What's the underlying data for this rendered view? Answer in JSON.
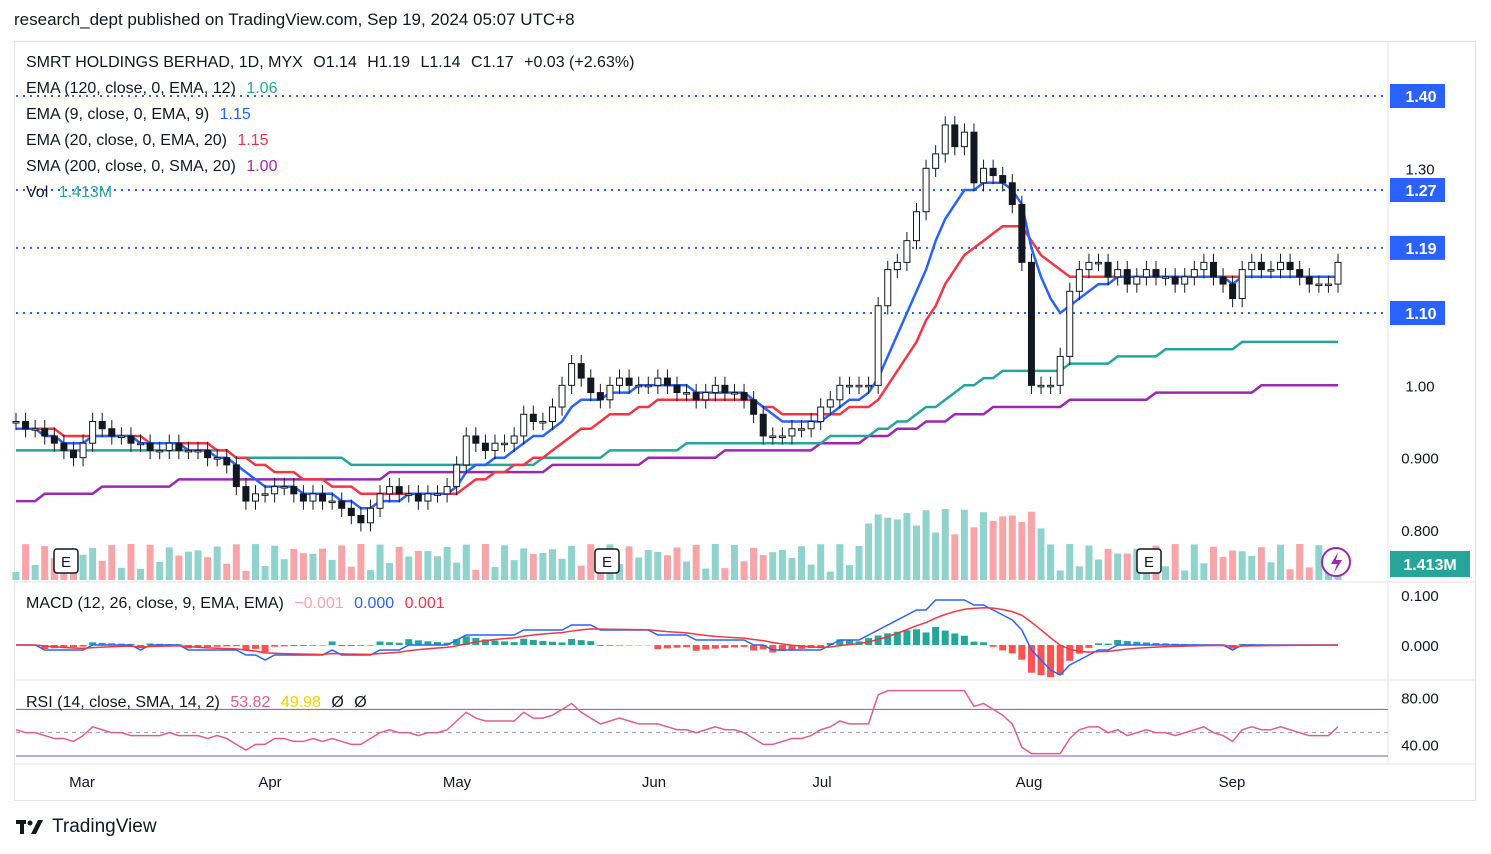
{
  "header": {
    "publish_line": "research_dept published on TradingView.com, Sep 19, 2024 05:07 UTC+8"
  },
  "footer": {
    "brand": "TradingView",
    "logo_icon": "tradingview-logo-icon"
  },
  "symbol_line": {
    "name": "SMRT HOLDINGS BERHAD, 1D, MYX",
    "open": "O1.14",
    "high": "H1.19",
    "low": "L1.14",
    "close": "C1.17",
    "change": "+0.03 (+2.63%)"
  },
  "indicators": [
    {
      "label": "EMA (120, close, 0, EMA, 12)",
      "value": "1.06",
      "color": "#26a69a"
    },
    {
      "label": "EMA (9, close, 0, EMA, 9)",
      "value": "1.15",
      "color": "#2962ff"
    },
    {
      "label": "EMA (20, close, 0, EMA, 20)",
      "value": "1.15",
      "color": "#f23645"
    },
    {
      "label": "SMA (200, close, 0, SMA, 20)",
      "value": "1.00",
      "color": "#9c27b0"
    },
    {
      "label": "Vol",
      "value": "1.413M",
      "color": "#26a69a"
    }
  ],
  "macd_legend": {
    "label": "MACD (12, 26, close, 9, EMA, EMA)",
    "hist": "−0.001",
    "macd": "0.000",
    "signal": "0.001"
  },
  "rsi_legend": {
    "label": "RSI (14, close, SMA, 14, 2)",
    "rsi": "53.82",
    "ma": "49.98",
    "extra1": "Ø",
    "extra2": "Ø"
  },
  "colors": {
    "up": "#26a69a",
    "down": "#f23645",
    "candle_up": "#ffffff",
    "candle_down": "#131722",
    "level_line": "#2962ff",
    "rsi": "#e35c8c",
    "rsi_band": "#7e57c2"
  },
  "chart_data": [
    {
      "type": "candlestick",
      "title": "SMRT HOLDINGS BERHAD, 1D, MYX",
      "x_ticks": [
        "Mar",
        "Apr",
        "May",
        "Jun",
        "Jul",
        "Aug",
        "Sep"
      ],
      "y_ticks": [
        "1.30",
        "1.00",
        "0.900",
        "0.800"
      ],
      "ylim": [
        0.78,
        1.42
      ],
      "horizontal_levels": [
        {
          "value": 1.4,
          "label": "1.40"
        },
        {
          "value": 1.27,
          "label": "1.27"
        },
        {
          "value": 1.19,
          "label": "1.19"
        },
        {
          "value": 1.1,
          "label": "1.10"
        }
      ],
      "volume_label": "1.413M",
      "earnings_markers": [
        "E",
        "E",
        "E"
      ],
      "close_series": [
        0.95,
        0.94,
        0.94,
        0.93,
        0.92,
        0.91,
        0.9,
        0.92,
        0.95,
        0.94,
        0.93,
        0.93,
        0.92,
        0.92,
        0.91,
        0.91,
        0.92,
        0.91,
        0.91,
        0.91,
        0.9,
        0.9,
        0.89,
        0.86,
        0.84,
        0.85,
        0.85,
        0.86,
        0.86,
        0.85,
        0.84,
        0.85,
        0.84,
        0.84,
        0.83,
        0.82,
        0.81,
        0.83,
        0.85,
        0.86,
        0.85,
        0.85,
        0.84,
        0.85,
        0.85,
        0.86,
        0.89,
        0.93,
        0.92,
        0.91,
        0.92,
        0.92,
        0.93,
        0.96,
        0.95,
        0.95,
        0.97,
        1.0,
        1.03,
        1.01,
        0.99,
        0.98,
        1.0,
        1.01,
        1.0,
        1.0,
        1.0,
        1.01,
        1.0,
        0.99,
        0.99,
        0.98,
        0.99,
        1.0,
        0.99,
        0.99,
        0.98,
        0.96,
        0.93,
        0.93,
        0.93,
        0.94,
        0.94,
        0.95,
        0.97,
        0.98,
        1.0,
        1.0,
        1.0,
        1.0,
        1.11,
        1.16,
        1.17,
        1.2,
        1.24,
        1.3,
        1.32,
        1.36,
        1.33,
        1.35,
        1.28,
        1.3,
        1.29,
        1.28,
        1.25,
        1.17,
        1.0,
        1.0,
        1.0,
        1.04,
        1.13,
        1.16,
        1.17,
        1.17,
        1.15,
        1.16,
        1.14,
        1.15,
        1.16,
        1.15,
        1.15,
        1.14,
        1.15,
        1.16,
        1.17,
        1.15,
        1.14,
        1.12,
        1.16,
        1.17,
        1.16,
        1.16,
        1.17,
        1.16,
        1.15,
        1.14,
        1.14,
        1.14,
        1.17
      ],
      "ema9": [
        0.94,
        0.94,
        0.94,
        0.93,
        0.93,
        0.92,
        0.92,
        0.92,
        0.93,
        0.93,
        0.93,
        0.93,
        0.93,
        0.92,
        0.92,
        0.92,
        0.92,
        0.92,
        0.91,
        0.91,
        0.91,
        0.9,
        0.9,
        0.89,
        0.88,
        0.87,
        0.86,
        0.86,
        0.86,
        0.86,
        0.85,
        0.85,
        0.85,
        0.85,
        0.84,
        0.84,
        0.83,
        0.83,
        0.84,
        0.84,
        0.84,
        0.85,
        0.85,
        0.85,
        0.85,
        0.85,
        0.86,
        0.88,
        0.89,
        0.89,
        0.9,
        0.9,
        0.91,
        0.92,
        0.93,
        0.93,
        0.94,
        0.95,
        0.97,
        0.98,
        0.98,
        0.98,
        0.99,
        0.99,
        0.99,
        1.0,
        1.0,
        1.0,
        1.0,
        1.0,
        1.0,
        0.99,
        0.99,
        0.99,
        0.99,
        0.99,
        0.99,
        0.98,
        0.97,
        0.96,
        0.95,
        0.95,
        0.95,
        0.95,
        0.95,
        0.96,
        0.97,
        0.98,
        0.98,
        0.99,
        1.01,
        1.04,
        1.07,
        1.1,
        1.13,
        1.16,
        1.2,
        1.23,
        1.25,
        1.27,
        1.27,
        1.28,
        1.28,
        1.28,
        1.27,
        1.25,
        1.19,
        1.15,
        1.12,
        1.1,
        1.11,
        1.12,
        1.13,
        1.14,
        1.14,
        1.15,
        1.15,
        1.15,
        1.15,
        1.15,
        1.15,
        1.15,
        1.15,
        1.15,
        1.15,
        1.15,
        1.15,
        1.14,
        1.15,
        1.15,
        1.15,
        1.15,
        1.15,
        1.15,
        1.15,
        1.15,
        1.15,
        1.15,
        1.15
      ],
      "ema20": [
        0.94,
        0.94,
        0.94,
        0.94,
        0.94,
        0.93,
        0.93,
        0.93,
        0.93,
        0.93,
        0.93,
        0.93,
        0.93,
        0.93,
        0.92,
        0.92,
        0.92,
        0.92,
        0.92,
        0.92,
        0.92,
        0.91,
        0.91,
        0.9,
        0.9,
        0.89,
        0.89,
        0.88,
        0.88,
        0.88,
        0.87,
        0.87,
        0.87,
        0.86,
        0.86,
        0.86,
        0.85,
        0.85,
        0.85,
        0.85,
        0.85,
        0.85,
        0.85,
        0.85,
        0.85,
        0.85,
        0.85,
        0.86,
        0.87,
        0.87,
        0.88,
        0.88,
        0.89,
        0.89,
        0.9,
        0.9,
        0.91,
        0.92,
        0.93,
        0.94,
        0.94,
        0.95,
        0.96,
        0.96,
        0.96,
        0.97,
        0.97,
        0.98,
        0.98,
        0.98,
        0.98,
        0.98,
        0.98,
        0.98,
        0.98,
        0.98,
        0.98,
        0.98,
        0.97,
        0.97,
        0.96,
        0.96,
        0.96,
        0.96,
        0.96,
        0.96,
        0.96,
        0.97,
        0.97,
        0.97,
        0.98,
        1.0,
        1.02,
        1.04,
        1.06,
        1.09,
        1.11,
        1.14,
        1.16,
        1.18,
        1.19,
        1.2,
        1.21,
        1.22,
        1.22,
        1.22,
        1.2,
        1.18,
        1.17,
        1.16,
        1.15,
        1.15,
        1.15,
        1.15,
        1.15,
        1.15,
        1.15,
        1.15,
        1.15,
        1.15,
        1.15,
        1.15,
        1.15,
        1.15,
        1.15,
        1.15,
        1.15,
        1.15,
        1.15,
        1.15,
        1.15,
        1.15,
        1.15,
        1.15,
        1.15,
        1.15,
        1.15,
        1.15,
        1.15
      ],
      "ema120": [
        0.91,
        0.91,
        0.91,
        0.91,
        0.91,
        0.91,
        0.91,
        0.91,
        0.91,
        0.91,
        0.91,
        0.91,
        0.91,
        0.91,
        0.91,
        0.91,
        0.91,
        0.91,
        0.91,
        0.91,
        0.91,
        0.91,
        0.91,
        0.9,
        0.9,
        0.9,
        0.9,
        0.9,
        0.9,
        0.9,
        0.9,
        0.9,
        0.9,
        0.9,
        0.9,
        0.89,
        0.89,
        0.89,
        0.89,
        0.89,
        0.89,
        0.89,
        0.89,
        0.89,
        0.89,
        0.89,
        0.89,
        0.89,
        0.89,
        0.89,
        0.89,
        0.89,
        0.89,
        0.89,
        0.89,
        0.9,
        0.9,
        0.9,
        0.9,
        0.9,
        0.9,
        0.9,
        0.91,
        0.91,
        0.91,
        0.91,
        0.91,
        0.91,
        0.91,
        0.91,
        0.92,
        0.92,
        0.92,
        0.92,
        0.92,
        0.92,
        0.92,
        0.92,
        0.92,
        0.92,
        0.92,
        0.92,
        0.92,
        0.92,
        0.92,
        0.93,
        0.93,
        0.93,
        0.93,
        0.93,
        0.94,
        0.94,
        0.95,
        0.95,
        0.96,
        0.97,
        0.97,
        0.98,
        0.99,
        1.0,
        1.0,
        1.01,
        1.01,
        1.02,
        1.02,
        1.02,
        1.02,
        1.02,
        1.02,
        1.02,
        1.03,
        1.03,
        1.03,
        1.03,
        1.03,
        1.04,
        1.04,
        1.04,
        1.04,
        1.04,
        1.05,
        1.05,
        1.05,
        1.05,
        1.05,
        1.05,
        1.05,
        1.05,
        1.06,
        1.06,
        1.06,
        1.06,
        1.06,
        1.06,
        1.06,
        1.06,
        1.06,
        1.06,
        1.06
      ],
      "sma200": [
        0.84,
        0.84,
        0.84,
        0.85,
        0.85,
        0.85,
        0.85,
        0.85,
        0.85,
        0.86,
        0.86,
        0.86,
        0.86,
        0.86,
        0.86,
        0.86,
        0.86,
        0.87,
        0.87,
        0.87,
        0.87,
        0.87,
        0.87,
        0.87,
        0.87,
        0.87,
        0.87,
        0.87,
        0.87,
        0.87,
        0.87,
        0.87,
        0.87,
        0.87,
        0.87,
        0.87,
        0.87,
        0.87,
        0.87,
        0.88,
        0.88,
        0.88,
        0.88,
        0.88,
        0.88,
        0.88,
        0.88,
        0.88,
        0.88,
        0.88,
        0.88,
        0.88,
        0.88,
        0.88,
        0.88,
        0.88,
        0.89,
        0.89,
        0.89,
        0.89,
        0.89,
        0.89,
        0.89,
        0.89,
        0.89,
        0.89,
        0.9,
        0.9,
        0.9,
        0.9,
        0.9,
        0.9,
        0.9,
        0.9,
        0.91,
        0.91,
        0.91,
        0.91,
        0.91,
        0.91,
        0.91,
        0.91,
        0.91,
        0.91,
        0.92,
        0.92,
        0.92,
        0.92,
        0.92,
        0.93,
        0.93,
        0.93,
        0.94,
        0.94,
        0.94,
        0.95,
        0.95,
        0.95,
        0.96,
        0.96,
        0.96,
        0.96,
        0.97,
        0.97,
        0.97,
        0.97,
        0.97,
        0.97,
        0.97,
        0.97,
        0.98,
        0.98,
        0.98,
        0.98,
        0.98,
        0.98,
        0.98,
        0.98,
        0.98,
        0.99,
        0.99,
        0.99,
        0.99,
        0.99,
        0.99,
        0.99,
        0.99,
        0.99,
        0.99,
        0.99,
        1.0,
        1.0,
        1.0,
        1.0,
        1.0,
        1.0,
        1.0,
        1.0,
        1.0
      ]
    },
    {
      "type": "bar",
      "title": "MACD (12, 26, close, 9, EMA, EMA)",
      "y_ticks": [
        "0.100",
        "0.000"
      ],
      "ylim": [
        -0.05,
        0.11
      ]
    },
    {
      "type": "line",
      "title": "RSI (14, close, SMA, 14, 2)",
      "y_ticks": [
        "80.00",
        "40.00"
      ],
      "ylim": [
        30,
        90
      ],
      "bands": [
        70,
        30
      ]
    }
  ]
}
